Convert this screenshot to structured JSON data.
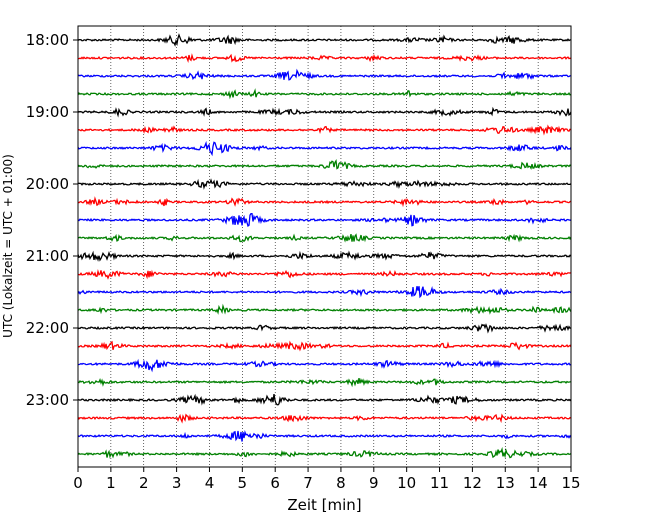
{
  "chart_data": {
    "type": "line",
    "xlabel": "Zeit  [min]",
    "ylabel": "UTC (Lokalzeit = UTC + 01:00)",
    "xlim": [
      0,
      15
    ],
    "x_ticks": [
      "0",
      "1",
      "2",
      "3",
      "4",
      "5",
      "6",
      "7",
      "8",
      "9",
      "10",
      "11",
      "12",
      "13",
      "14",
      "15"
    ],
    "y_ticks": [
      "18:00",
      "19:00",
      "20:00",
      "21:00",
      "22:00",
      "23:00"
    ],
    "grid": "x-dotted",
    "trace_colors": [
      "#000000",
      "#ff0000",
      "#0000ff",
      "#008000"
    ],
    "traces": [
      "18:00",
      "18:15",
      "18:30",
      "18:45",
      "19:00",
      "19:15",
      "19:30",
      "19:45",
      "20:00",
      "20:15",
      "20:30",
      "20:45",
      "21:00",
      "21:15",
      "21:30",
      "21:45",
      "22:00",
      "22:15",
      "22:30",
      "22:45",
      "23:00",
      "23:15",
      "23:30",
      "23:45"
    ]
  }
}
